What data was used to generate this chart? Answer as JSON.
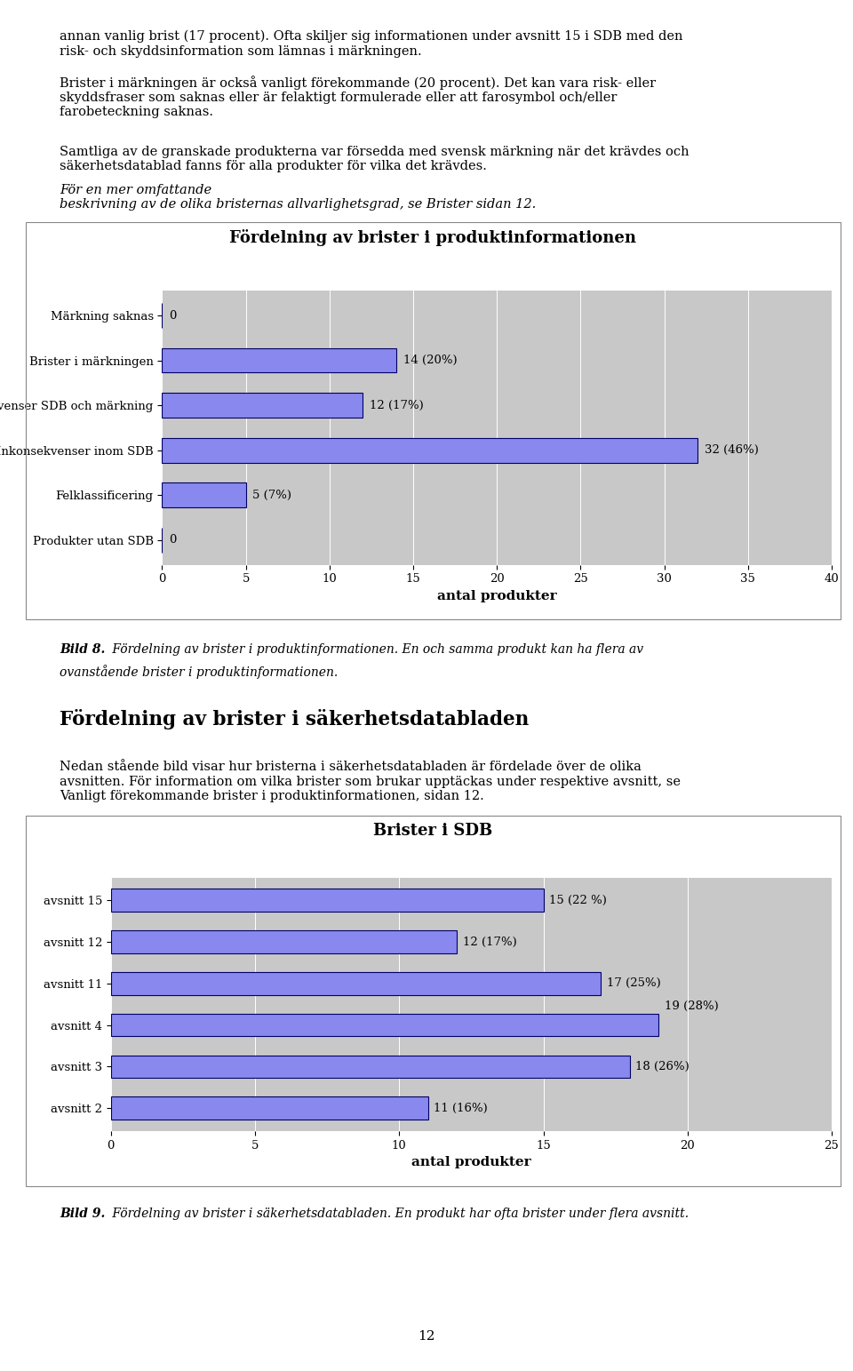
{
  "page_bg": "#ffffff",
  "page_width": 9.6,
  "page_height": 15.43,
  "chart1": {
    "title": "Fördelning av brister i produktinformationen",
    "categories": [
      "Märkning saknas",
      "Brister i märkningen",
      "Inkonsekvenser SDB och märkning",
      "Inkonsekvenser inom SDB",
      "Felklassificering",
      "Produkter utan SDB"
    ],
    "values": [
      0,
      14,
      12,
      32,
      5,
      0
    ],
    "labels": [
      "0",
      "14 (20%)",
      "12 (17%)",
      "32 (46%)",
      "5 (7%)",
      "0"
    ],
    "xlabel": "antal produkter",
    "xlim": [
      0,
      40
    ],
    "xticks": [
      0,
      5,
      10,
      15,
      20,
      25,
      30,
      35,
      40
    ],
    "bar_color": "#8888ee",
    "bar_edge_color": "#000066",
    "bg_color": "#c8c8c8",
    "title_fontsize": 13
  },
  "chart2": {
    "title": "Brister i SDB",
    "categories": [
      "avsnitt 15",
      "avsnitt 12",
      "avsnitt 11",
      "avsnitt 4",
      "avsnitt 3",
      "avsnitt 2"
    ],
    "values": [
      15,
      12,
      17,
      19,
      18,
      11
    ],
    "labels": [
      "15 (22 %)",
      "12 (17%)",
      "17 (25%)",
      "19 (28%)",
      "18 (26%)",
      "11 (16%)"
    ],
    "xlabel": "antal produkter",
    "xlim": [
      0,
      25
    ],
    "xticks": [
      0,
      5,
      10,
      15,
      20,
      25
    ],
    "bar_color": "#8888ee",
    "bar_edge_color": "#000066",
    "bg_color": "#c8c8c8",
    "title_fontsize": 13
  },
  "page_number": "12"
}
